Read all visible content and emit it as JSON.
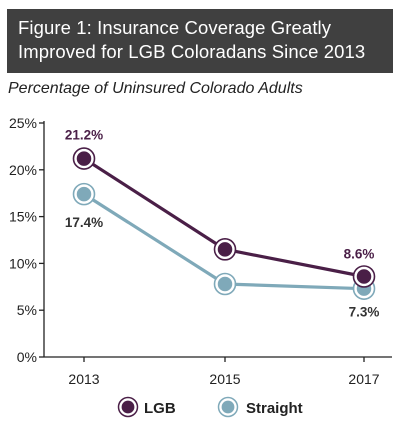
{
  "title_lines": [
    "Figure 1: Insurance Coverage Greatly",
    "Improved for LGB Coloradans Since 2013"
  ],
  "subtitle": "Percentage of Uninsured Colorado Adults",
  "colors": {
    "lgb": "#4a1f47",
    "straight": "#7fa9b9",
    "title_bg": "#404040",
    "axis": "#222222"
  },
  "chart_data": {
    "type": "line",
    "x": [
      "2013",
      "2015",
      "2017"
    ],
    "ylim": [
      0,
      25
    ],
    "yticks": [
      0,
      5,
      10,
      15,
      20,
      25
    ],
    "ytick_labels": [
      "0%",
      "5%",
      "10%",
      "15%",
      "20%",
      "25%"
    ],
    "grid": false,
    "legend_position": "bottom",
    "series": [
      {
        "name": "LGB",
        "values": [
          21.2,
          11.5,
          8.6
        ],
        "labels": [
          "21.2%",
          "",
          "8.6%"
        ],
        "color": "#4a1f47"
      },
      {
        "name": "Straight",
        "values": [
          17.4,
          7.8,
          7.3
        ],
        "labels": [
          "17.4%",
          "",
          "7.3%"
        ],
        "color": "#7fa9b9"
      }
    ]
  }
}
